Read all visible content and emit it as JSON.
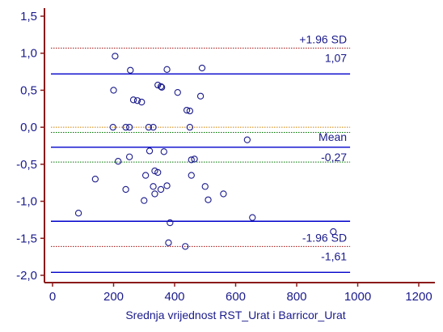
{
  "chart_data": {
    "type": "scatter",
    "xlabel": "Srednja vrijednost RST_Urat i Barricor_Urat",
    "ylabel": "",
    "xlim": [
      0,
      1200
    ],
    "ylim": [
      -2.0,
      1.5
    ],
    "x_ticks": [
      "0",
      "200",
      "400",
      "600",
      "800",
      "1000",
      "1200"
    ],
    "y_ticks": [
      "1,5",
      "1,0",
      "0,5",
      "0,0",
      "-0,5",
      "-1,0",
      "-1,5",
      "-2,0"
    ],
    "x_tick_values": [
      0,
      200,
      400,
      600,
      800,
      1000,
      1200
    ],
    "y_tick_values": [
      1.5,
      1.0,
      0.5,
      0.0,
      -0.5,
      -1.0,
      -1.5,
      -2.0
    ],
    "grid": false,
    "reference_lines": {
      "x_end": 975,
      "upper_loa": {
        "label": "+1.96 SD",
        "value_label": "1,07",
        "value": 1.07
      },
      "mean": {
        "label": "Mean",
        "value_label": "-0,27",
        "value": -0.27
      },
      "lower_loa": {
        "label": "-1.96 SD",
        "value_label": "-1,61",
        "value": -1.61
      },
      "blue_lines": [
        0.72,
        -0.27,
        -1.27,
        -1.96
      ],
      "dotted_red_lines": [
        1.07,
        -1.61
      ],
      "dotted_green_lines": [
        -0.07,
        -0.47
      ],
      "dotted_orange_lines": [
        0.0
      ]
    },
    "colors": {
      "axis": "#8b1a1a",
      "text": "#1a1a8c",
      "blue_line": "#0000cc",
      "red_dotted": "#a01010",
      "green_dotted": "#007000",
      "orange_dotted": "#d08000",
      "marker": "#1a1a8c"
    },
    "series": [
      {
        "marker": "open-circle",
        "points": [
          [
            205,
            0.96
          ],
          [
            255,
            0.77
          ],
          [
            375,
            0.78
          ],
          [
            490,
            0.8
          ],
          [
            200,
            0.5
          ],
          [
            345,
            0.57
          ],
          [
            355,
            0.55
          ],
          [
            358,
            0.54
          ],
          [
            410,
            0.47
          ],
          [
            485,
            0.42
          ],
          [
            265,
            0.37
          ],
          [
            278,
            0.36
          ],
          [
            292,
            0.34
          ],
          [
            440,
            0.23
          ],
          [
            450,
            0.22
          ],
          [
            198,
            0.0
          ],
          [
            240,
            0.0
          ],
          [
            252,
            0.0
          ],
          [
            315,
            0.0
          ],
          [
            330,
            0.0
          ],
          [
            450,
            0.0
          ],
          [
            638,
            -0.17
          ],
          [
            318,
            -0.32
          ],
          [
            365,
            -0.33
          ],
          [
            252,
            -0.4
          ],
          [
            455,
            -0.44
          ],
          [
            465,
            -0.43
          ],
          [
            215,
            -0.46
          ],
          [
            335,
            -0.59
          ],
          [
            345,
            -0.61
          ],
          [
            305,
            -0.65
          ],
          [
            455,
            -0.65
          ],
          [
            140,
            -0.7
          ],
          [
            330,
            -0.8
          ],
          [
            375,
            -0.79
          ],
          [
            500,
            -0.8
          ],
          [
            355,
            -0.84
          ],
          [
            240,
            -0.84
          ],
          [
            335,
            -0.9
          ],
          [
            560,
            -0.9
          ],
          [
            300,
            -0.99
          ],
          [
            510,
            -0.98
          ],
          [
            85,
            -1.16
          ],
          [
            655,
            -1.22
          ],
          [
            385,
            -1.29
          ],
          [
            920,
            -1.41
          ],
          [
            380,
            -1.56
          ],
          [
            435,
            -1.61
          ]
        ]
      }
    ]
  }
}
